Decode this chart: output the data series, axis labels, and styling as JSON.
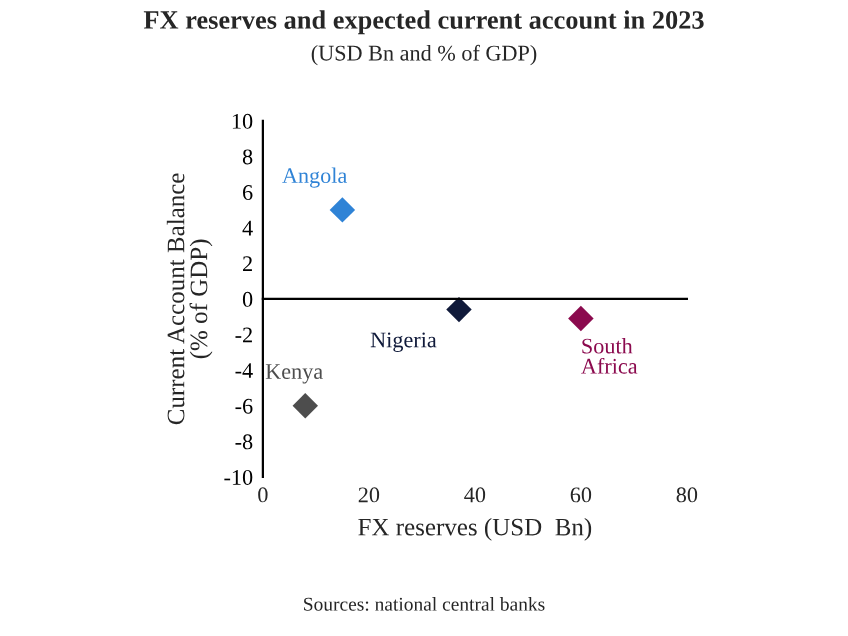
{
  "chart_data": {
    "type": "scatter",
    "title": "FX reserves and expected current account in 2023",
    "subtitle": "(USD Bn and % of GDP)",
    "xlabel": "FX reserves (USD  Bn)",
    "ylabel": "Current Account Balance\n(% of GDP)",
    "marker": "diamond",
    "legend": false,
    "xlim": [
      0,
      80
    ],
    "xticks": [
      0,
      20,
      40,
      60,
      80
    ],
    "ylim": [
      -10,
      10
    ],
    "yticks": [
      -10,
      -8,
      -6,
      -4,
      -2,
      0,
      2,
      4,
      6,
      8,
      10
    ],
    "series": [
      {
        "name": "Angola",
        "color": "#2f83d6",
        "x": [
          15
        ],
        "values": [
          5
        ]
      },
      {
        "name": "Nigeria",
        "color": "#101a3a",
        "x": [
          37
        ],
        "values": [
          -0.6
        ]
      },
      {
        "name": "South Africa",
        "color": "#8b0a4e",
        "x": [
          60
        ],
        "values": [
          -1.1
        ]
      },
      {
        "name": "Kenya",
        "color": "#4d4d4d",
        "x": [
          8
        ],
        "values": [
          -6
        ]
      }
    ],
    "annotations": [
      "Sources: national central banks"
    ]
  }
}
